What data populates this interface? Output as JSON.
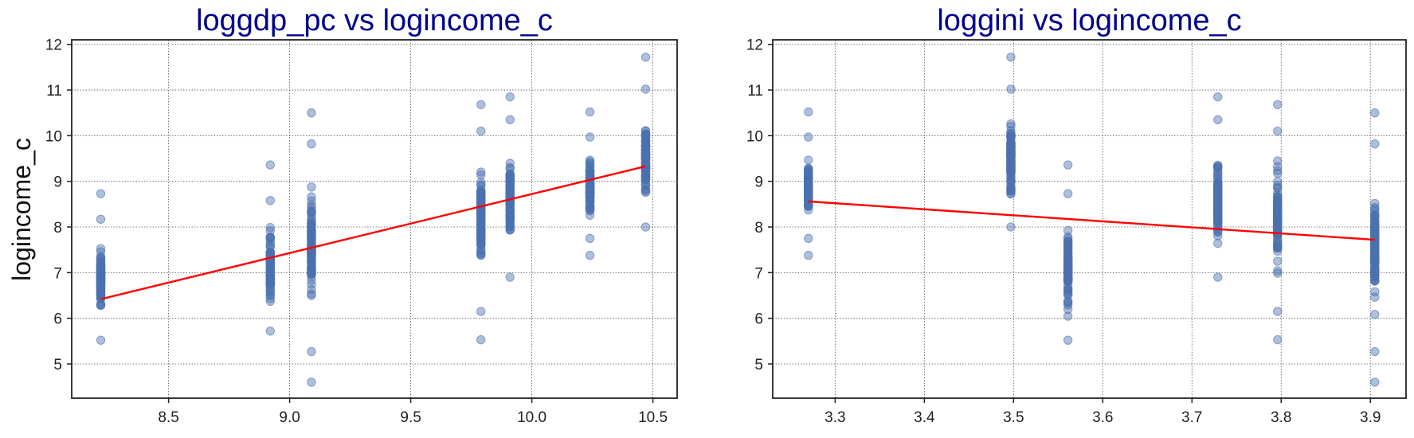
{
  "chart_data": [
    {
      "type": "scatter",
      "title": "loggdp_pc vs logincome_c",
      "xlabel": "",
      "ylabel": "logincome_c",
      "xlim": [
        8.1,
        10.6
      ],
      "ylim": [
        4.25,
        12.1
      ],
      "xticks": [
        "8.5",
        "9.0",
        "9.5",
        "10.0",
        "10.5"
      ],
      "xtick_values": [
        8.5,
        9.0,
        9.5,
        10.0,
        10.5
      ],
      "yticks": [
        "5",
        "6",
        "7",
        "8",
        "9",
        "10",
        "11",
        "12"
      ],
      "ytick_values": [
        5,
        6,
        7,
        8,
        9,
        10,
        11,
        12
      ],
      "grid": true,
      "point_color": "#4c72b0",
      "fit_color": "#ff0000",
      "groups": [
        {
          "x": 8.22,
          "min": 5.52,
          "max": 8.73,
          "outliers": [
            8.73,
            8.17,
            5.52
          ]
        },
        {
          "x": 8.92,
          "min": 5.72,
          "max": 9.36,
          "outliers": [
            9.36,
            8.58,
            5.72
          ]
        },
        {
          "x": 9.09,
          "min": 4.6,
          "max": 10.5,
          "outliers": [
            10.5,
            9.82,
            5.27,
            4.6
          ]
        },
        {
          "x": 9.79,
          "min": 5.53,
          "max": 10.68,
          "outliers": [
            10.68,
            10.1,
            6.15,
            5.53
          ]
        },
        {
          "x": 9.91,
          "min": 6.9,
          "max": 10.85,
          "outliers": [
            10.85,
            10.35,
            6.9
          ]
        },
        {
          "x": 10.24,
          "min": 7.38,
          "max": 10.52,
          "outliers": [
            10.52,
            9.97,
            7.75,
            7.38
          ]
        },
        {
          "x": 10.47,
          "min": 8.0,
          "max": 11.72,
          "outliers": [
            11.72,
            11.02,
            8.0
          ]
        }
      ],
      "fit_line": {
        "x": [
          8.22,
          10.47
        ],
        "y": [
          6.42,
          9.33
        ]
      }
    },
    {
      "type": "scatter",
      "title": "loggini vs logincome_c",
      "xlabel": "",
      "ylabel": "",
      "xlim": [
        3.23,
        3.94
      ],
      "ylim": [
        4.25,
        12.1
      ],
      "xticks": [
        "3.3",
        "3.4",
        "3.5",
        "3.6",
        "3.7",
        "3.8",
        "3.9"
      ],
      "xtick_values": [
        3.3,
        3.4,
        3.5,
        3.6,
        3.7,
        3.8,
        3.9
      ],
      "yticks": [
        "5",
        "6",
        "7",
        "8",
        "9",
        "10",
        "11",
        "12"
      ],
      "ytick_values": [
        5,
        6,
        7,
        8,
        9,
        10,
        11,
        12
      ],
      "grid": true,
      "point_color": "#4c72b0",
      "fit_color": "#ff0000",
      "groups": [
        {
          "x": 3.27,
          "min": 7.38,
          "max": 10.52,
          "outliers": [
            10.52,
            9.97,
            7.75,
            7.38
          ]
        },
        {
          "x": 3.497,
          "min": 8.0,
          "max": 11.72,
          "outliers": [
            11.72,
            11.02,
            8.0
          ]
        },
        {
          "x": 3.561,
          "min": 5.52,
          "max": 9.36,
          "outliers": [
            9.36,
            8.73,
            5.52
          ]
        },
        {
          "x": 3.729,
          "min": 6.9,
          "max": 10.85,
          "outliers": [
            10.85,
            10.35,
            6.9
          ]
        },
        {
          "x": 3.796,
          "min": 5.53,
          "max": 10.68,
          "outliers": [
            10.68,
            10.1,
            6.15,
            5.53
          ]
        },
        {
          "x": 3.905,
          "min": 4.6,
          "max": 10.5,
          "outliers": [
            10.5,
            9.82,
            5.27,
            4.6
          ]
        }
      ],
      "fit_line": {
        "x": [
          3.27,
          3.905
        ],
        "y": [
          8.56,
          7.72
        ]
      }
    }
  ]
}
